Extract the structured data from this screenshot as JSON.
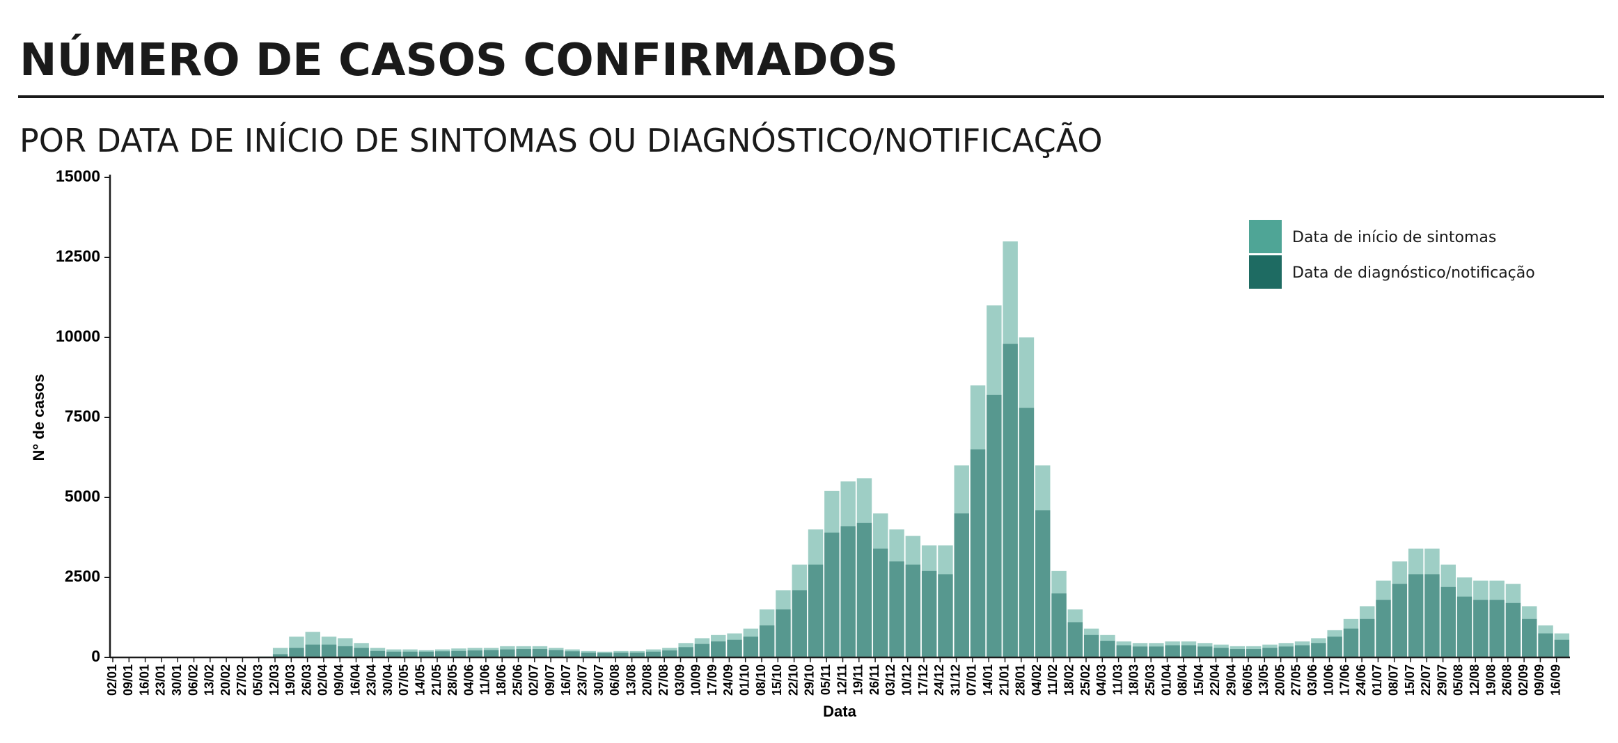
{
  "chart_data": {
    "type": "bar",
    "title": "NÚMERO DE CASOS CONFIRMADOS",
    "subtitle": "POR DATA DE INÍCIO DE SINTOMAS OU DIAGNÓSTICO/NOTIFICAÇÃO",
    "x_label": "Data",
    "y_label": "N° de casos",
    "categories": [
      "02/01",
      "09/01",
      "16/01",
      "23/01",
      "30/01",
      "06/02",
      "13/02",
      "20/02",
      "27/02",
      "05/03",
      "12/03",
      "19/03",
      "26/03",
      "02/04",
      "09/04",
      "16/04",
      "23/04",
      "30/04",
      "07/05",
      "14/05",
      "21/05",
      "28/05",
      "04/06",
      "11/06",
      "18/06",
      "25/06",
      "02/07",
      "09/07",
      "16/07",
      "23/07",
      "30/07",
      "06/08",
      "13/08",
      "20/08",
      "27/08",
      "03/09",
      "10/09",
      "17/09",
      "24/09",
      "01/10",
      "08/10",
      "15/10",
      "22/10",
      "29/10",
      "05/11",
      "12/11",
      "19/11",
      "26/11",
      "03/12",
      "10/12",
      "17/12",
      "24/12",
      "31/12",
      "07/01",
      "14/01",
      "21/01",
      "28/01",
      "04/02",
      "11/02",
      "18/02",
      "25/02",
      "04/03",
      "11/03",
      "18/03",
      "25/03",
      "01/04",
      "08/04",
      "15/04",
      "22/04",
      "29/04",
      "06/05",
      "13/05",
      "20/05",
      "27/05",
      "03/06",
      "10/06",
      "17/06",
      "24/06",
      "01/07",
      "08/07",
      "15/07",
      "22/07",
      "29/07",
      "05/08",
      "12/08",
      "19/08",
      "26/08",
      "02/09",
      "09/09",
      "16/09"
    ],
    "series": [
      {
        "name": "Data de início de sintomas",
        "color": "#4fa596",
        "values": [
          0,
          0,
          0,
          0,
          0,
          0,
          0,
          0,
          0,
          30,
          300,
          650,
          800,
          650,
          600,
          450,
          300,
          250,
          250,
          230,
          250,
          280,
          300,
          300,
          350,
          350,
          350,
          300,
          250,
          200,
          180,
          200,
          200,
          250,
          300,
          450,
          600,
          700,
          750,
          900,
          1500,
          2100,
          2900,
          4000,
          5200,
          5500,
          5600,
          4500,
          4000,
          3800,
          3500,
          3500,
          6000,
          8500,
          11000,
          13000,
          10000,
          6000,
          2700,
          1500,
          900,
          700,
          500,
          450,
          450,
          500,
          500,
          450,
          400,
          350,
          350,
          400,
          450,
          500,
          600,
          850,
          1200,
          1600,
          2400,
          3000,
          3400,
          3400,
          2900,
          2500,
          2400,
          2400,
          2300,
          1600,
          1000,
          750
        ]
      },
      {
        "name": "Data de diagnóstico/notificação",
        "color": "#1e6b62",
        "values": [
          0,
          0,
          0,
          0,
          0,
          0,
          0,
          0,
          0,
          10,
          100,
          300,
          400,
          400,
          350,
          300,
          200,
          180,
          180,
          180,
          190,
          200,
          220,
          230,
          250,
          260,
          260,
          230,
          190,
          150,
          140,
          150,
          150,
          180,
          220,
          320,
          420,
          500,
          550,
          650,
          1000,
          1500,
          2100,
          2900,
          3900,
          4100,
          4200,
          3400,
          3000,
          2900,
          2700,
          2600,
          4500,
          6500,
          8200,
          9800,
          7800,
          4600,
          2000,
          1100,
          700,
          520,
          380,
          340,
          340,
          380,
          380,
          340,
          300,
          260,
          260,
          300,
          340,
          380,
          450,
          650,
          900,
          1200,
          1800,
          2300,
          2600,
          2600,
          2200,
          1900,
          1800,
          1800,
          1700,
          1200,
          750,
          550
        ]
      }
    ],
    "ylim": [
      0,
      15000
    ],
    "yticks": [
      0,
      2500,
      5000,
      7500,
      10000,
      12500,
      15000
    ]
  }
}
